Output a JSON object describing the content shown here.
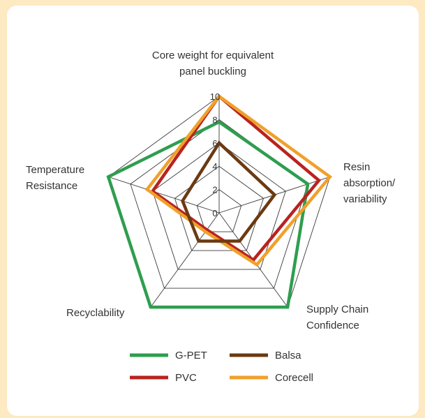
{
  "chart_data": {
    "type": "radar",
    "axes": [
      {
        "label_lines": [
          "Core weight for equivalent",
          "panel buckling"
        ]
      },
      {
        "label_lines": [
          "Resin",
          "absorption/",
          "variability"
        ]
      },
      {
        "label_lines": [
          "Supply Chain",
          "Confidence"
        ]
      },
      {
        "label_lines": [
          "Recyclability"
        ]
      },
      {
        "label_lines": [
          "Temperature",
          "Resistance"
        ]
      }
    ],
    "r_ticks": [
      "0",
      "2",
      "4",
      "6",
      "8",
      "10"
    ],
    "r_range": [
      0,
      10
    ],
    "series": [
      {
        "name": "G-PET",
        "color": "#2e9e4f",
        "values": [
          7.8,
          8.0,
          10,
          10,
          10
        ]
      },
      {
        "name": "PVC",
        "color": "#b8231f",
        "values": [
          10,
          9.0,
          5.0,
          1.8,
          6.0
        ]
      },
      {
        "name": "Corecell",
        "color": "#f0a02b",
        "values": [
          10,
          10,
          5.5,
          2.0,
          6.5
        ]
      },
      {
        "name": "Balsa",
        "color": "#6b3a12",
        "values": [
          6.0,
          5.0,
          3.0,
          3.0,
          3.3
        ]
      }
    ],
    "legend": [
      {
        "name": "G-PET",
        "color": "#2e9e4f"
      },
      {
        "name": "Balsa",
        "color": "#6b3a12"
      },
      {
        "name": "PVC",
        "color": "#b8231f"
      },
      {
        "name": "Corecell",
        "color": "#f0a02b"
      }
    ],
    "legend_position": "bottom",
    "grid": true
  }
}
